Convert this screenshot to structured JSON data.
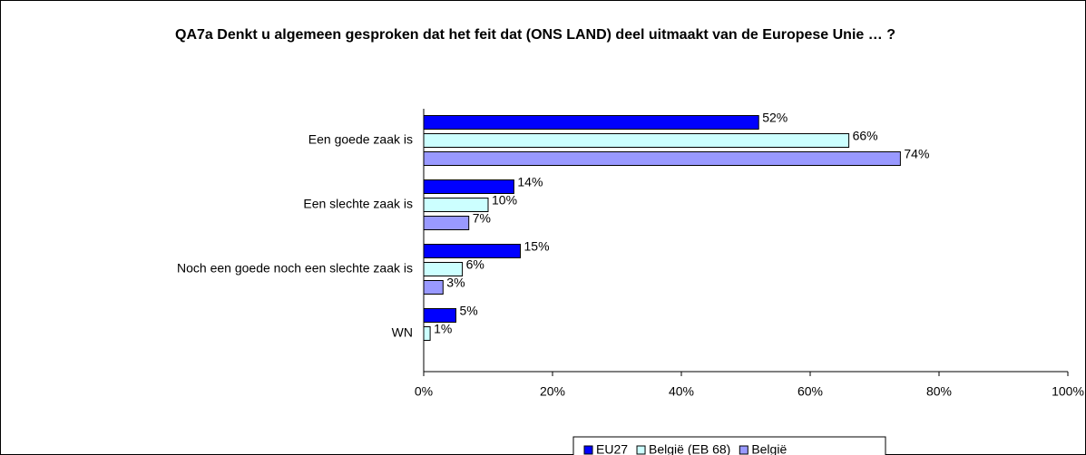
{
  "chart_data": {
    "type": "barh",
    "title": "QA7a Denkt u algemeen gesproken dat het feit dat (ONS LAND) deel uitmaakt van de Europese Unie … ?",
    "categories": [
      "Een goede zaak is",
      "Een slechte zaak is",
      "Noch een goede noch een slechte zaak is",
      "WN"
    ],
    "series": [
      {
        "name": "EU27",
        "color": "#0000ff",
        "values": [
          52,
          14,
          15,
          5
        ],
        "value_labels": [
          "52%",
          "14%",
          "15%",
          "5%"
        ]
      },
      {
        "name": "België (EB 68)",
        "color": "#ccffff",
        "values": [
          66,
          10,
          6,
          1
        ],
        "value_labels": [
          "66%",
          "10%",
          "6%",
          "1%"
        ]
      },
      {
        "name": "België",
        "color": "#9999ff",
        "values": [
          74,
          7,
          3,
          null
        ],
        "value_labels": [
          "74%",
          "7%",
          "3%",
          null
        ]
      }
    ],
    "xlim": [
      0,
      100
    ],
    "xticks": [
      {
        "value": 0,
        "label": "0%"
      },
      {
        "value": 20,
        "label": "20%"
      },
      {
        "value": 40,
        "label": "40%"
      },
      {
        "value": 60,
        "label": "60%"
      },
      {
        "value": 80,
        "label": "80%"
      },
      {
        "value": 100,
        "label": "100%"
      }
    ],
    "legend": "bottom"
  }
}
